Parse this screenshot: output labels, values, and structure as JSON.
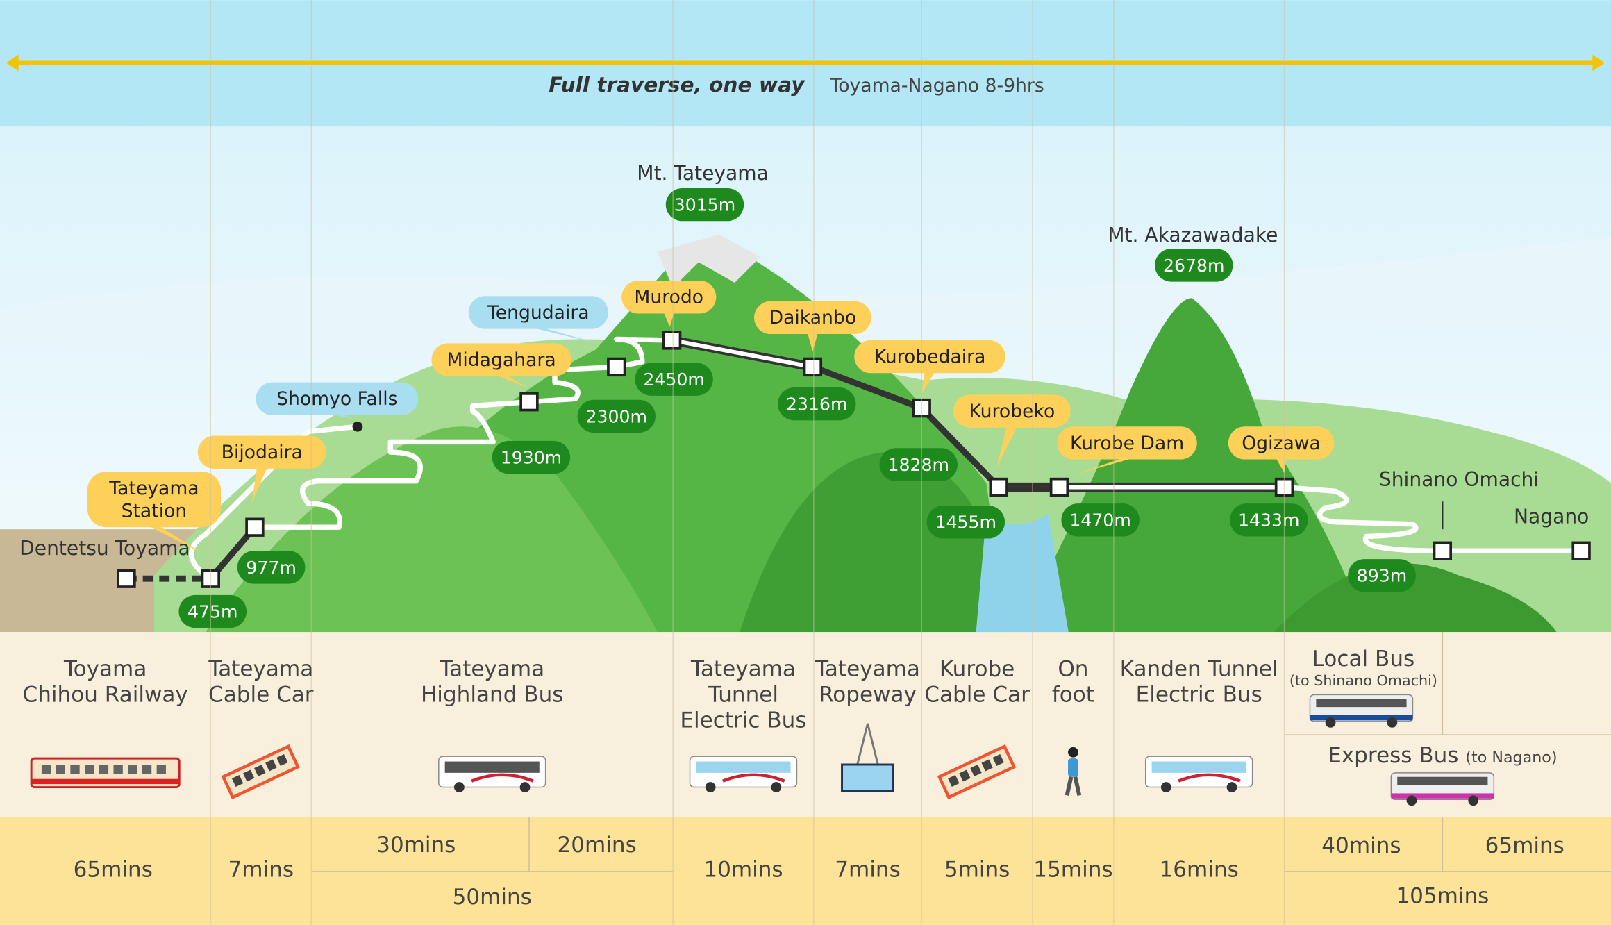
{
  "header": {
    "traverse_label": "Full traverse, one way",
    "traverse_detail": "Toyama-Nagano 8-9hrs"
  },
  "peaks": [
    {
      "name": "Mt. Tateyama",
      "elevation": "3015m"
    },
    {
      "name": "Mt. Akazawadake",
      "elevation": "2678m"
    }
  ],
  "place_labels": [
    "Dentetsu Toyama",
    "Shinano Omachi",
    "Nagano"
  ],
  "stations": [
    "Tateyama Station",
    "Bijodaira",
    "Midagahara",
    "Murodo",
    "Daikanbo",
    "Kurobedaira",
    "Kurobeko",
    "Kurobe Dam",
    "Ogizawa"
  ],
  "viewpoints": [
    "Shomyo Falls",
    "Tengudaira"
  ],
  "elevations": [
    "475m",
    "977m",
    "1930m",
    "2300m",
    "2450m",
    "2316m",
    "1828m",
    "1455m",
    "1470m",
    "1433m",
    "893m"
  ],
  "modes": [
    {
      "name": [
        "Toyama",
        "Chihou Railway"
      ],
      "icon": "train-icon",
      "time": "65mins"
    },
    {
      "name": [
        "Tateyama",
        "Cable Car"
      ],
      "icon": "cable-car-icon",
      "time": "7mins"
    },
    {
      "name": [
        "Tateyama",
        "Highland Bus"
      ],
      "icon": "bus-icon",
      "time": "50mins",
      "split_times": [
        "30mins",
        "20mins"
      ]
    },
    {
      "name": [
        "Tateyama",
        "Tunnel",
        "Electric Bus"
      ],
      "icon": "electric-bus-icon",
      "time": "10mins"
    },
    {
      "name": [
        "Tateyama",
        "Ropeway"
      ],
      "icon": "ropeway-icon",
      "time": "7mins"
    },
    {
      "name": [
        "Kurobe",
        "Cable Car"
      ],
      "icon": "cable-car-icon",
      "time": "5mins"
    },
    {
      "name": [
        "On",
        "foot"
      ],
      "icon": "walking-person-icon",
      "time": "15mins"
    },
    {
      "name": [
        "Kanden Tunnel",
        "Electric Bus"
      ],
      "icon": "electric-bus-icon",
      "time": "16mins"
    }
  ],
  "final_leg": {
    "local_bus": {
      "name": "Local Bus",
      "note": "(to Shinano Omachi)",
      "time": "40mins"
    },
    "express_bus": {
      "name": "Express Bus",
      "note": "(to Nagano)",
      "time": "65mins"
    },
    "total_time": "105mins"
  },
  "colors": {
    "sky": "#b3e6f5",
    "arrow": "#f5c400",
    "callout": "#fdd05a",
    "viewpoint": "#a9ddf0",
    "elevation_badge": "#1e8a1e",
    "mountain": "#4cae3c",
    "cream": "#f8f0dc",
    "time_band": "#fde397"
  }
}
